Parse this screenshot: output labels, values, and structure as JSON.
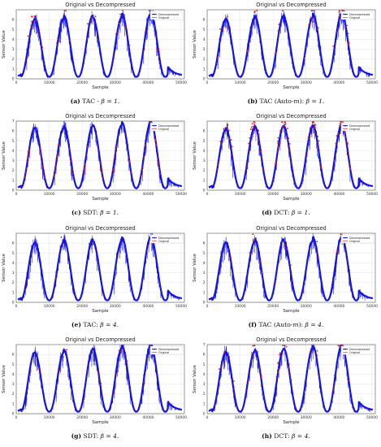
{
  "chart_data": [
    {
      "type": "scatter",
      "title": "Original vs Decompressed",
      "xlabel": "Sample",
      "ylabel": "Sensor Value",
      "xlim": [
        0,
        51000
      ],
      "ylim": [
        0,
        7
      ],
      "xticks": [
        0,
        10000,
        20000,
        30000,
        40000,
        50000
      ],
      "xtick_labels": [
        "0",
        "10000",
        "20000",
        "30000",
        "40000",
        "50000"
      ],
      "yticks": [
        0,
        1,
        2,
        3,
        4,
        5,
        6
      ],
      "legend": "top-right",
      "grid": true,
      "series": [
        {
          "name": "Decompressed",
          "color": "#1515e6"
        },
        {
          "name": "Original",
          "color": "#e61515"
        }
      ],
      "caption": {
        "label": "(a)",
        "text": "TAC - ",
        "beta": "β = 1."
      },
      "peaks": [
        6.0,
        6.1,
        6.4,
        6.2,
        6.6
      ],
      "mismatch": "moderate-red"
    },
    {
      "type": "scatter",
      "title": "Original vs Decompressed",
      "xlabel": "Sample",
      "ylabel": "Sensor Value",
      "xlim": [
        0,
        51000
      ],
      "ylim": [
        0,
        7
      ],
      "xticks": [
        0,
        10000,
        20000,
        30000,
        40000,
        50000
      ],
      "xtick_labels": [
        "0",
        "10000",
        "20000",
        "30000",
        "40000",
        "50000"
      ],
      "yticks": [
        0,
        1,
        2,
        3,
        4,
        5,
        6
      ],
      "legend": "top-right",
      "grid": true,
      "series": [
        {
          "name": "Decompressed",
          "color": "#1515e6"
        },
        {
          "name": "Original",
          "color": "#e61515"
        }
      ],
      "caption": {
        "label": "(b)",
        "text": "TAC (Auto-",
        "m": "m",
        "after": "): ",
        "beta": "β = 1."
      },
      "peaks": [
        6.0,
        6.1,
        6.4,
        6.2,
        6.6
      ],
      "mismatch": "moderate-red"
    },
    {
      "type": "scatter",
      "title": "Original vs Decompressed",
      "xlabel": "Sample",
      "ylabel": "Sensor Value",
      "xlim": [
        0,
        51000
      ],
      "ylim": [
        0,
        7
      ],
      "xticks": [
        0,
        10000,
        20000,
        30000,
        40000,
        50000
      ],
      "xtick_labels": [
        "0",
        "10000",
        "20000",
        "30000",
        "40000",
        "50000"
      ],
      "yticks": [
        0,
        1,
        2,
        3,
        4,
        5,
        6,
        7
      ],
      "legend": "top-right",
      "grid": true,
      "series": [
        {
          "name": "Decompressed",
          "color": "#1515e6"
        },
        {
          "name": "Original",
          "color": "#e61515"
        }
      ],
      "caption": {
        "label": "(c)",
        "text": "SDT: ",
        "beta": "β = 1."
      },
      "peaks": [
        6.3,
        6.3,
        6.5,
        6.6,
        6.9
      ],
      "mismatch": "heavy-red-tails"
    },
    {
      "type": "scatter",
      "title": "Original vs Decompressed",
      "xlabel": "Sample",
      "ylabel": "Sensor Value",
      "xlim": [
        0,
        51000
      ],
      "ylim": [
        0,
        7
      ],
      "xticks": [
        0,
        10000,
        20000,
        30000,
        40000,
        50000
      ],
      "xtick_labels": [
        "0",
        "10000",
        "20000",
        "30000",
        "40000",
        "50000"
      ],
      "yticks": [
        0,
        1,
        2,
        3,
        4,
        5,
        6
      ],
      "legend": "top-right",
      "grid": true,
      "series": [
        {
          "name": "Decompressed",
          "color": "#1515e6"
        },
        {
          "name": "Original",
          "color": "#e61515"
        }
      ],
      "caption": {
        "label": "(d)",
        "text": "DCT: ",
        "beta": "β = 1."
      },
      "peaks": [
        6.1,
        6.3,
        6.5,
        6.4,
        6.6
      ],
      "mismatch": "heavy-red-peaks"
    },
    {
      "type": "scatter",
      "title": "Original vs Decompressed",
      "xlabel": "Sample",
      "ylabel": "Sensor Value",
      "xlim": [
        0,
        51000
      ],
      "ylim": [
        0,
        7
      ],
      "xticks": [
        0,
        10000,
        20000,
        30000,
        40000,
        50000
      ],
      "xtick_labels": [
        "0",
        "10000",
        "20000",
        "30000",
        "40000",
        "50000"
      ],
      "yticks": [
        0,
        1,
        2,
        3,
        4,
        5,
        6
      ],
      "legend": "top-right",
      "grid": true,
      "series": [
        {
          "name": "Decompressed",
          "color": "#1515e6"
        },
        {
          "name": "Original",
          "color": "#e61515"
        }
      ],
      "caption": {
        "label": "(e)",
        "text": "TAC: ",
        "beta": "β = 4."
      },
      "peaks": [
        6.0,
        6.1,
        6.4,
        6.2,
        6.6
      ],
      "mismatch": "minimal"
    },
    {
      "type": "scatter",
      "title": "Original vs Decompressed",
      "xlabel": "Sample",
      "ylabel": "Sensor Value",
      "xlim": [
        0,
        51000
      ],
      "ylim": [
        0,
        7
      ],
      "xticks": [
        0,
        10000,
        20000,
        30000,
        40000,
        50000
      ],
      "xtick_labels": [
        "0",
        "10000",
        "20000",
        "30000",
        "40000",
        "50000"
      ],
      "yticks": [
        0,
        1,
        2,
        3,
        4,
        5,
        6
      ],
      "legend": "top-right",
      "grid": true,
      "series": [
        {
          "name": "Decompressed",
          "color": "#1515e6"
        },
        {
          "name": "Original",
          "color": "#e61515"
        }
      ],
      "caption": {
        "label": "(f)",
        "text": "TAC (Auto-",
        "m": "m",
        "after": "): ",
        "beta": "β = 4."
      },
      "peaks": [
        6.0,
        6.1,
        6.4,
        6.2,
        6.6
      ],
      "mismatch": "light-red"
    },
    {
      "type": "scatter",
      "title": "Original vs Decompressed",
      "xlabel": "Sample",
      "ylabel": "Sensor Value",
      "xlim": [
        0,
        51000
      ],
      "ylim": [
        0,
        7
      ],
      "xticks": [
        0,
        10000,
        20000,
        30000,
        40000,
        50000
      ],
      "xtick_labels": [
        "0",
        "10000",
        "20000",
        "30000",
        "40000",
        "50000"
      ],
      "yticks": [
        0,
        1,
        2,
        3,
        4,
        5,
        6
      ],
      "legend": "top-right",
      "grid": true,
      "series": [
        {
          "name": "Decompressed",
          "color": "#1515e6"
        },
        {
          "name": "Original",
          "color": "#e61515"
        }
      ],
      "caption": {
        "label": "(g)",
        "text": "SDT: ",
        "beta": "β = 4."
      },
      "peaks": [
        6.2,
        6.2,
        6.5,
        6.6,
        6.9
      ],
      "mismatch": "light-red"
    },
    {
      "type": "scatter",
      "title": "Original vs Decompressed",
      "xlabel": "Sample",
      "ylabel": "Sensor Value",
      "xlim": [
        0,
        51000
      ],
      "ylim": [
        0,
        7
      ],
      "xticks": [
        0,
        10000,
        20000,
        30000,
        40000,
        50000
      ],
      "xtick_labels": [
        "0",
        "10000",
        "20000",
        "30000",
        "40000",
        "50000"
      ],
      "yticks": [
        0,
        1,
        2,
        3,
        4,
        5,
        6,
        7
      ],
      "legend": "top-right",
      "grid": true,
      "series": [
        {
          "name": "Decompressed",
          "color": "#1515e6"
        },
        {
          "name": "Original",
          "color": "#e61515"
        }
      ],
      "caption": {
        "label": "(h)",
        "text": "DCT: ",
        "beta": "β = 4."
      },
      "peaks": [
        6.2,
        6.3,
        6.5,
        6.6,
        6.9
      ],
      "mismatch": "moderate-red-peaks"
    }
  ]
}
